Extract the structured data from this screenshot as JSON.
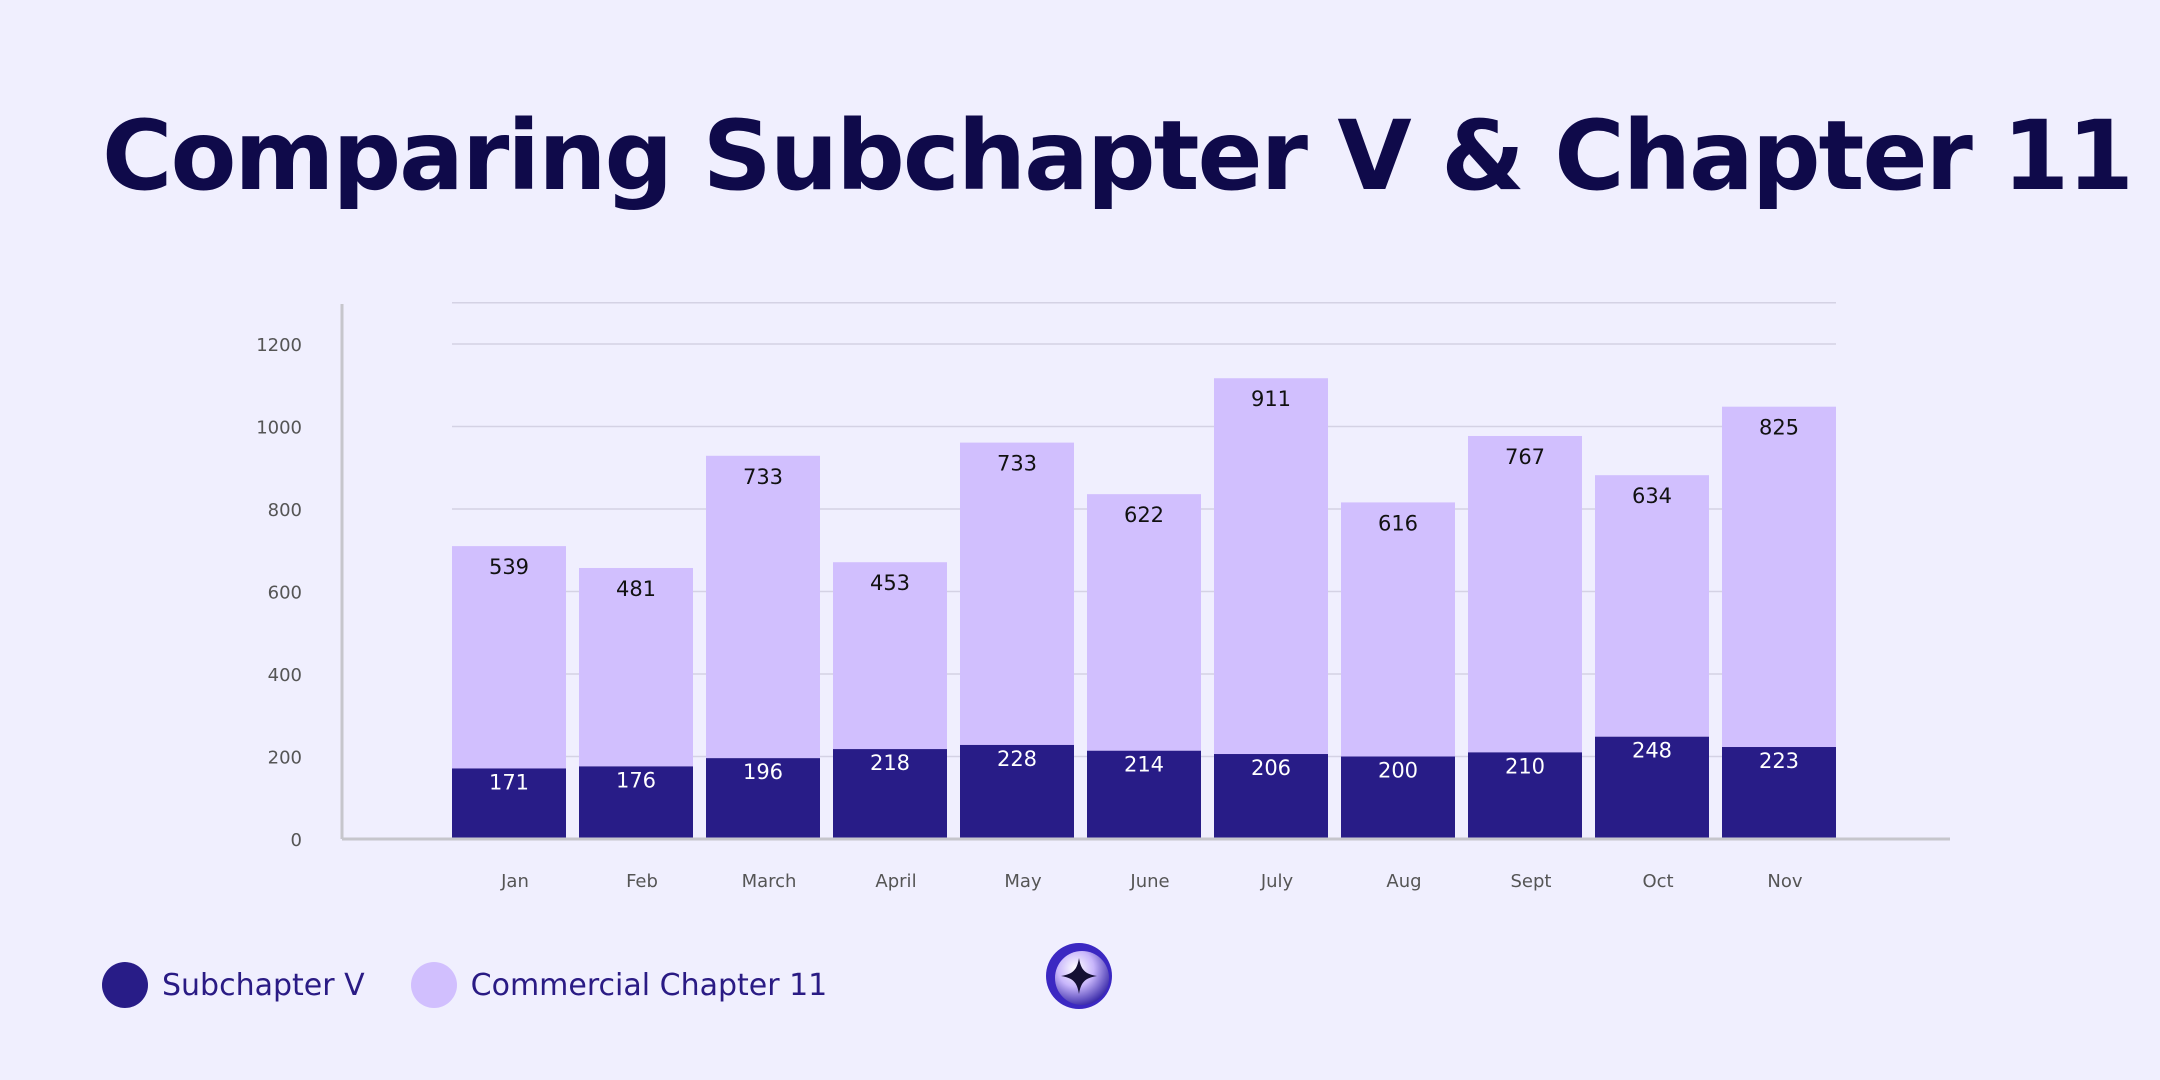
{
  "page": {
    "title": "Comparing Subchapter V & Chapter 11"
  },
  "colors": {
    "background": "#f0effe",
    "title": "#0f0a4a",
    "subchapter_v": "#281c87",
    "commercial_chapter_11": "#d1bffe",
    "grid": "#d4d2e4",
    "axis": "#c6c6cc",
    "tick_text": "#555555",
    "label_dark": "#111111",
    "label_light": "#ffffff"
  },
  "legend": {
    "items": [
      {
        "label": "Subchapter V",
        "color": "#281c87"
      },
      {
        "label": "Commercial Chapter 11",
        "color": "#d1bffe"
      }
    ]
  },
  "logo": {
    "icon": "sparkle-star-icon"
  },
  "chart_data": {
    "type": "bar",
    "stacked": true,
    "title": "Comparing Subchapter V & Chapter 11",
    "xlabel": "",
    "ylabel": "",
    "ylim": [
      0,
      1300
    ],
    "yticks": [
      0,
      200,
      400,
      600,
      800,
      1000,
      1200
    ],
    "grid": true,
    "categories": [
      "Jan",
      "Feb",
      "March",
      "April",
      "May",
      "June",
      "July",
      "Aug",
      "Sept",
      "Oct",
      "Nov"
    ],
    "series": [
      {
        "name": "Subchapter V",
        "values": [
          171,
          176,
          196,
          218,
          228,
          214,
          206,
          200,
          210,
          248,
          223
        ]
      },
      {
        "name": "Commercial Chapter 11",
        "values": [
          539,
          481,
          733,
          453,
          733,
          622,
          911,
          616,
          767,
          634,
          825
        ]
      }
    ]
  }
}
